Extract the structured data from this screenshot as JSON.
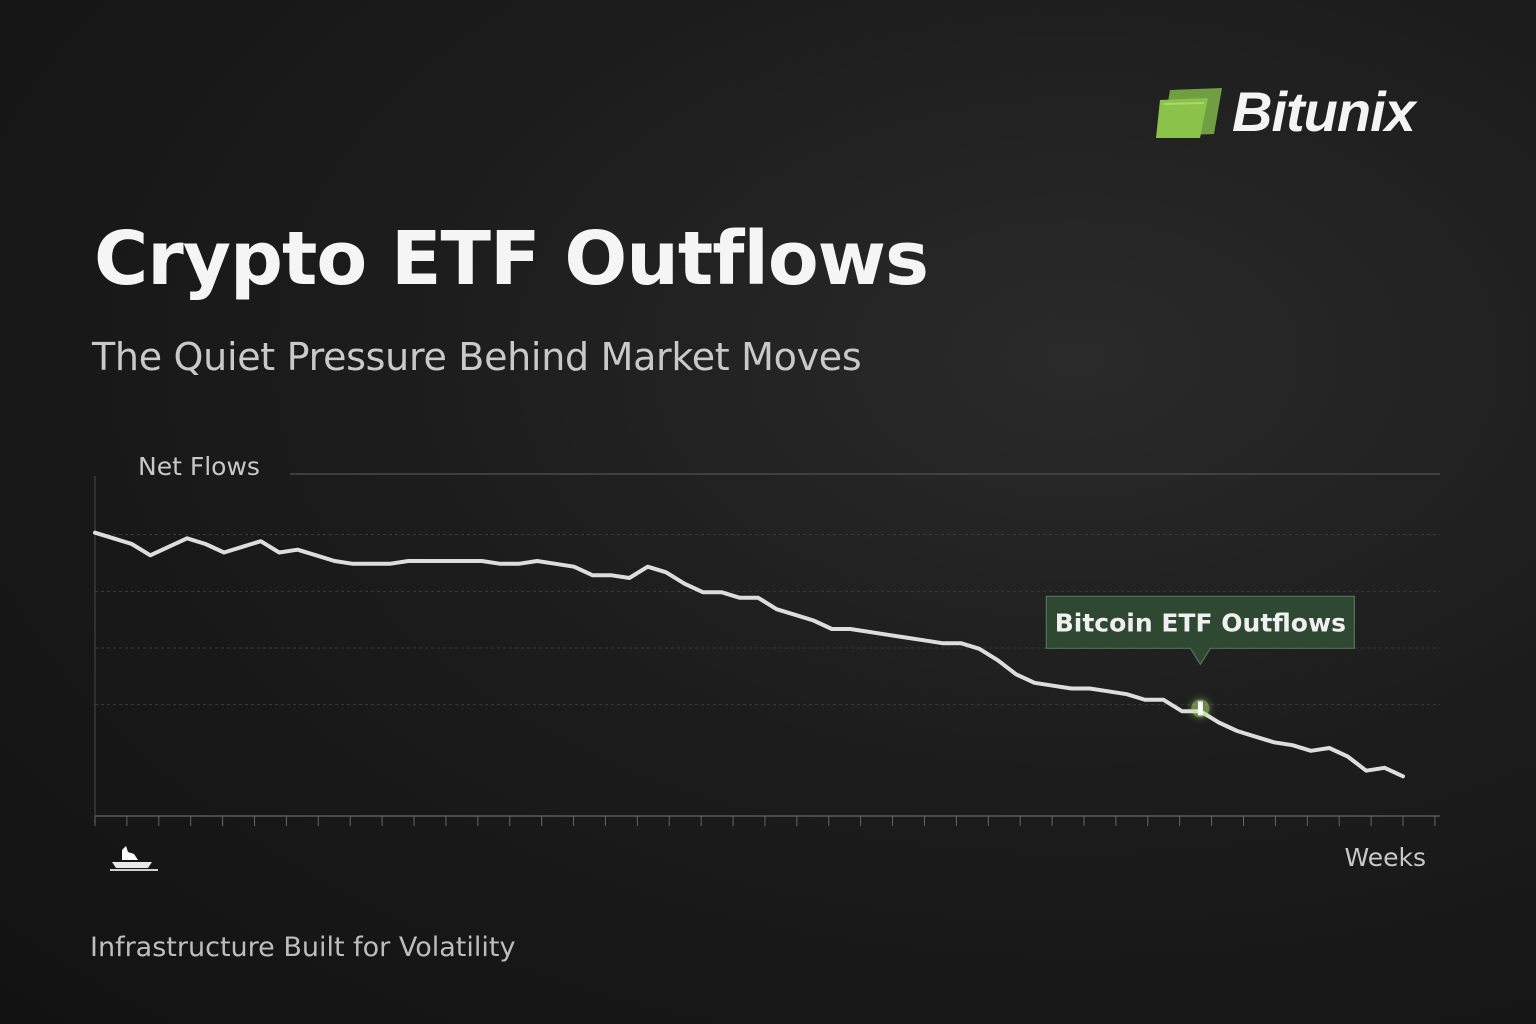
{
  "brand": {
    "name": "Bitunix",
    "logo_icon": "bitunix-leaf-icon",
    "accent": "#8bc34a"
  },
  "title": "Crypto ETF Outflows",
  "subtitle": "The Quiet Pressure Behind Market Moves",
  "tagline": "Infrastructure Built for  Volatility",
  "footer_icon": "ship-icon",
  "chart_data": {
    "type": "line",
    "title": "",
    "ylabel": "Net Flows",
    "xlabel": "Weeks",
    "grid": true,
    "x": [
      0,
      1,
      2,
      3,
      4,
      5,
      6,
      7,
      8,
      9,
      10,
      11,
      12,
      13,
      14,
      15,
      16,
      17,
      18,
      19,
      20,
      21,
      22,
      23,
      24,
      25,
      26,
      27,
      28,
      29,
      30,
      31,
      32,
      33,
      34,
      35,
      36,
      37,
      38,
      39,
      40,
      41,
      42,
      43,
      44,
      45,
      46,
      47,
      48,
      49,
      50,
      51,
      52,
      53,
      54,
      55,
      56,
      57,
      58,
      59,
      60,
      61,
      62,
      63,
      64,
      65,
      66,
      67,
      68,
      69,
      70,
      71
    ],
    "series": [
      {
        "values": [
          100,
          98,
          96,
          92,
          95,
          98,
          96,
          93,
          95,
          97,
          93,
          94,
          92,
          90,
          89,
          89,
          89,
          90,
          90,
          90,
          90,
          90,
          89,
          89,
          90,
          89,
          88,
          85,
          85,
          84,
          88,
          86,
          82,
          79,
          79,
          77,
          77,
          73,
          71,
          69,
          66,
          66,
          65,
          64,
          63,
          62,
          61,
          61,
          59,
          55,
          50,
          47,
          46,
          45,
          45,
          44,
          43,
          41,
          41,
          37,
          37,
          33,
          30,
          28,
          26,
          25,
          23,
          24,
          21,
          16,
          17,
          14
        ],
        "color": "#e8e8e8"
      }
    ],
    "reference_line": {
      "value": 38,
      "color": "#3a6f86"
    },
    "annotation": {
      "text": "Bitcoin ETF Outflows",
      "x": 60,
      "y": 38
    },
    "ylim": [
      0,
      120
    ]
  }
}
